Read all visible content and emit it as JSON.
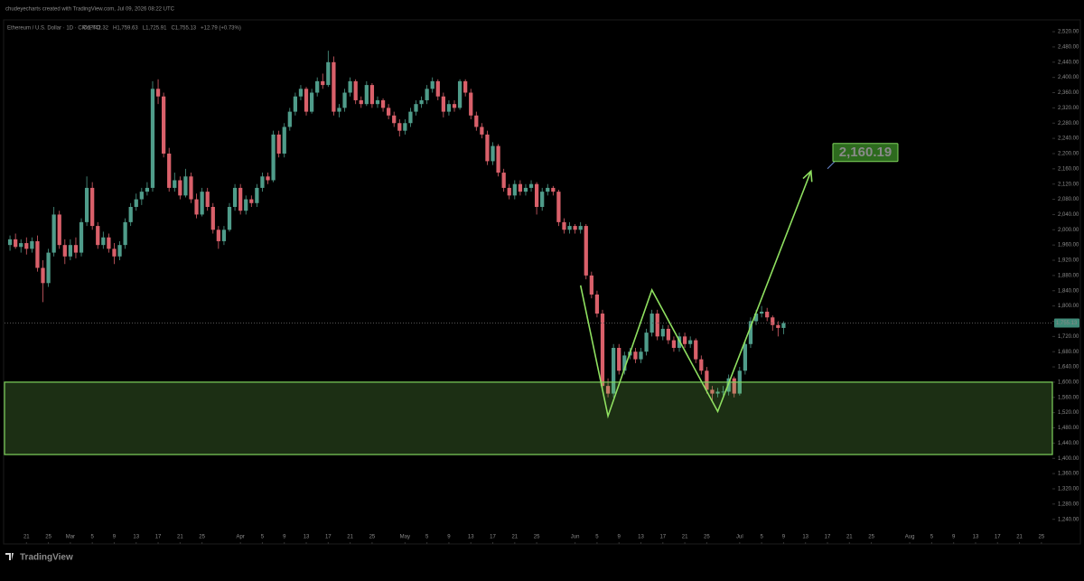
{
  "chart_data": {
    "type": "candlestick",
    "subtitle": "chudeyecharts created with TradingView.com, Jul 09, 2026 08:22 UTC",
    "title": "Ethereum / U.S. Dollar · 1D · CRYPTO",
    "legend_values": [
      "O1,742.32",
      "H1,759.63",
      "L1,725.91",
      "C1,755.13",
      "+12.79 (+0.73%)"
    ],
    "brand": "TradingView",
    "up_color": "#4f9c8a",
    "down_color": "#d9606a",
    "x": [
      "Feb 18",
      "Feb 19",
      "Feb 20",
      "Feb 21",
      "Feb 22",
      "Feb 23",
      "Feb 24",
      "Feb 25",
      "Feb 26",
      "Feb 27",
      "Feb 28",
      "Mar 1",
      "Mar 2",
      "Mar 3",
      "Mar 4",
      "Mar 5",
      "Mar 6",
      "Mar 7",
      "Mar 8",
      "Mar 9",
      "Mar 10",
      "Mar 11",
      "Mar 12",
      "Mar 13",
      "Mar 14",
      "Mar 15",
      "Mar 16",
      "Mar 17",
      "Mar 18",
      "Mar 19",
      "Mar 20",
      "Mar 21",
      "Mar 22",
      "Mar 23",
      "Mar 24",
      "Mar 25",
      "Mar 26",
      "Mar 27",
      "Mar 28",
      "Mar 29",
      "Mar 30",
      "Mar 31",
      "Apr 1",
      "Apr 2",
      "Apr 3",
      "Apr 4",
      "Apr 5",
      "Apr 6",
      "Apr 7",
      "Apr 8",
      "Apr 9",
      "Apr 10",
      "Apr 11",
      "Apr 12",
      "Apr 13",
      "Apr 14",
      "Apr 15",
      "Apr 16",
      "Apr 17",
      "Apr 18",
      "Apr 19",
      "Apr 20",
      "Apr 21",
      "Apr 22",
      "Apr 23",
      "Apr 24",
      "Apr 25",
      "Apr 26",
      "Apr 27",
      "Apr 28",
      "Apr 29",
      "Apr 30",
      "May 1",
      "May 2",
      "May 3",
      "May 4",
      "May 5",
      "May 6",
      "May 7",
      "May 8",
      "May 9",
      "May 10",
      "May 11",
      "May 12",
      "May 13",
      "May 14",
      "May 15",
      "May 16",
      "May 17",
      "May 18",
      "May 19",
      "May 20",
      "May 21",
      "May 22",
      "May 23",
      "May 24",
      "May 25",
      "May 26",
      "May 27",
      "May 28",
      "May 29",
      "May 30",
      "May 31",
      "Jun 1",
      "Jun 2",
      "Jun 3",
      "Jun 4",
      "Jun 5",
      "Jun 6",
      "Jun 7",
      "Jun 8",
      "Jun 9",
      "Jun 10",
      "Jun 11",
      "Jun 12",
      "Jun 13",
      "Jun 14",
      "Jun 15",
      "Jun 16",
      "Jun 17",
      "Jun 18",
      "Jun 19",
      "Jun 20",
      "Jun 21",
      "Jun 22",
      "Jun 23",
      "Jun 24",
      "Jun 25",
      "Jun 26",
      "Jun 27",
      "Jun 28",
      "Jun 29",
      "Jun 30",
      "Jul 1",
      "Jul 2",
      "Jul 3",
      "Jul 4",
      "Jul 5",
      "Jul 6",
      "Jul 7",
      "Jul 8",
      "Jul 9"
    ],
    "ohlc": [
      [
        1960,
        1985,
        1945,
        1975
      ],
      [
        1975,
        1990,
        1950,
        1955
      ],
      [
        1955,
        1975,
        1940,
        1965
      ],
      [
        1965,
        1980,
        1935,
        1950
      ],
      [
        1950,
        1980,
        1940,
        1970
      ],
      [
        1970,
        1985,
        1890,
        1900
      ],
      [
        1900,
        1920,
        1810,
        1860
      ],
      [
        1860,
        1950,
        1850,
        1940
      ],
      [
        1940,
        2060,
        1930,
        2040
      ],
      [
        2040,
        2050,
        1950,
        1960
      ],
      [
        1960,
        1975,
        1910,
        1930
      ],
      [
        1930,
        1975,
        1920,
        1960
      ],
      [
        1960,
        1980,
        1925,
        1940
      ],
      [
        1940,
        2030,
        1930,
        2020
      ],
      [
        2020,
        2140,
        2010,
        2110
      ],
      [
        2110,
        2125,
        2000,
        2010
      ],
      [
        2010,
        2020,
        1950,
        1960
      ],
      [
        1960,
        1995,
        1950,
        1980
      ],
      [
        1980,
        1990,
        1940,
        1950
      ],
      [
        1950,
        1965,
        1910,
        1930
      ],
      [
        1930,
        1970,
        1920,
        1960
      ],
      [
        1960,
        2030,
        1950,
        2020
      ],
      [
        2020,
        2070,
        2010,
        2060
      ],
      [
        2060,
        2095,
        2050,
        2080
      ],
      [
        2080,
        2110,
        2065,
        2100
      ],
      [
        2100,
        2125,
        2090,
        2110
      ],
      [
        2110,
        2390,
        2100,
        2370
      ],
      [
        2370,
        2395,
        2330,
        2350
      ],
      [
        2350,
        2360,
        2190,
        2200
      ],
      [
        2200,
        2215,
        2100,
        2110
      ],
      [
        2110,
        2150,
        2100,
        2130
      ],
      [
        2130,
        2140,
        2080,
        2090
      ],
      [
        2090,
        2160,
        2085,
        2140
      ],
      [
        2140,
        2150,
        2070,
        2080
      ],
      [
        2080,
        2095,
        2030,
        2040
      ],
      [
        2040,
        2110,
        2035,
        2100
      ],
      [
        2100,
        2110,
        2050,
        2060
      ],
      [
        2060,
        2070,
        1990,
        2000
      ],
      [
        2000,
        2010,
        1950,
        1970
      ],
      [
        1970,
        2010,
        1960,
        2000
      ],
      [
        2000,
        2070,
        1995,
        2060
      ],
      [
        2060,
        2120,
        2050,
        2110
      ],
      [
        2110,
        2120,
        2040,
        2050
      ],
      [
        2050,
        2090,
        2040,
        2080
      ],
      [
        2080,
        2090,
        2060,
        2070
      ],
      [
        2070,
        2120,
        2060,
        2110
      ],
      [
        2110,
        2150,
        2100,
        2140
      ],
      [
        2140,
        2150,
        2120,
        2130
      ],
      [
        2130,
        2260,
        2125,
        2250
      ],
      [
        2250,
        2260,
        2190,
        2200
      ],
      [
        2200,
        2280,
        2190,
        2270
      ],
      [
        2270,
        2320,
        2260,
        2310
      ],
      [
        2310,
        2360,
        2300,
        2350
      ],
      [
        2350,
        2380,
        2340,
        2370
      ],
      [
        2370,
        2375,
        2300,
        2310
      ],
      [
        2310,
        2370,
        2305,
        2360
      ],
      [
        2360,
        2400,
        2350,
        2390
      ],
      [
        2390,
        2410,
        2370,
        2380
      ],
      [
        2380,
        2470,
        2375,
        2440
      ],
      [
        2440,
        2455,
        2300,
        2310
      ],
      [
        2310,
        2330,
        2295,
        2320
      ],
      [
        2320,
        2370,
        2310,
        2360
      ],
      [
        2360,
        2400,
        2350,
        2390
      ],
      [
        2390,
        2395,
        2330,
        2340
      ],
      [
        2340,
        2350,
        2320,
        2330
      ],
      [
        2330,
        2390,
        2325,
        2380
      ],
      [
        2380,
        2385,
        2320,
        2330
      ],
      [
        2330,
        2350,
        2320,
        2340
      ],
      [
        2340,
        2345,
        2310,
        2320
      ],
      [
        2320,
        2330,
        2290,
        2300
      ],
      [
        2300,
        2310,
        2270,
        2280
      ],
      [
        2280,
        2290,
        2245,
        2260
      ],
      [
        2260,
        2290,
        2250,
        2280
      ],
      [
        2280,
        2320,
        2270,
        2310
      ],
      [
        2310,
        2340,
        2300,
        2330
      ],
      [
        2330,
        2350,
        2320,
        2340
      ],
      [
        2340,
        2380,
        2330,
        2370
      ],
      [
        2370,
        2400,
        2360,
        2390
      ],
      [
        2390,
        2395,
        2340,
        2350
      ],
      [
        2350,
        2360,
        2295,
        2310
      ],
      [
        2310,
        2340,
        2300,
        2330
      ],
      [
        2330,
        2340,
        2310,
        2320
      ],
      [
        2320,
        2395,
        2315,
        2390
      ],
      [
        2390,
        2395,
        2350,
        2360
      ],
      [
        2360,
        2370,
        2290,
        2300
      ],
      [
        2300,
        2310,
        2260,
        2270
      ],
      [
        2270,
        2280,
        2240,
        2250
      ],
      [
        2250,
        2260,
        2170,
        2180
      ],
      [
        2180,
        2230,
        2170,
        2220
      ],
      [
        2220,
        2225,
        2140,
        2150
      ],
      [
        2150,
        2160,
        2100,
        2110
      ],
      [
        2110,
        2120,
        2080,
        2090
      ],
      [
        2090,
        2130,
        2080,
        2120
      ],
      [
        2120,
        2130,
        2090,
        2100
      ],
      [
        2100,
        2120,
        2090,
        2110
      ],
      [
        2110,
        2130,
        2100,
        2120
      ],
      [
        2120,
        2125,
        2040,
        2060
      ],
      [
        2060,
        2110,
        2050,
        2100
      ],
      [
        2100,
        2120,
        2090,
        2110
      ],
      [
        2110,
        2115,
        2090,
        2100
      ],
      [
        2100,
        2105,
        2010,
        2020
      ],
      [
        2020,
        2030,
        1990,
        2000
      ],
      [
        2000,
        2020,
        1990,
        2010
      ],
      [
        2010,
        2015,
        1990,
        2000
      ],
      [
        2000,
        2020,
        1990,
        2010
      ],
      [
        2010,
        2015,
        1870,
        1880
      ],
      [
        1880,
        1890,
        1820,
        1830
      ],
      [
        1830,
        1840,
        1770,
        1780
      ],
      [
        1780,
        1790,
        1580,
        1590
      ],
      [
        1590,
        1610,
        1560,
        1570
      ],
      [
        1570,
        1700,
        1560,
        1690
      ],
      [
        1690,
        1700,
        1620,
        1630
      ],
      [
        1630,
        1680,
        1620,
        1670
      ],
      [
        1670,
        1690,
        1660,
        1680
      ],
      [
        1680,
        1690,
        1650,
        1660
      ],
      [
        1660,
        1690,
        1650,
        1680
      ],
      [
        1680,
        1740,
        1670,
        1730
      ],
      [
        1730,
        1790,
        1720,
        1780
      ],
      [
        1780,
        1790,
        1710,
        1720
      ],
      [
        1720,
        1750,
        1710,
        1740
      ],
      [
        1740,
        1750,
        1700,
        1710
      ],
      [
        1710,
        1720,
        1680,
        1690
      ],
      [
        1690,
        1730,
        1680,
        1720
      ],
      [
        1720,
        1730,
        1690,
        1700
      ],
      [
        1700,
        1720,
        1690,
        1710
      ],
      [
        1710,
        1715,
        1650,
        1660
      ],
      [
        1660,
        1670,
        1620,
        1630
      ],
      [
        1630,
        1640,
        1570,
        1580
      ],
      [
        1580,
        1590,
        1550,
        1570
      ],
      [
        1570,
        1585,
        1560,
        1575
      ],
      [
        1575,
        1590,
        1565,
        1575
      ],
      [
        1575,
        1620,
        1565,
        1610
      ],
      [
        1610,
        1615,
        1560,
        1570
      ],
      [
        1570,
        1640,
        1565,
        1630
      ],
      [
        1630,
        1710,
        1620,
        1700
      ],
      [
        1700,
        1770,
        1690,
        1760
      ],
      [
        1760,
        1790,
        1750,
        1780
      ],
      [
        1780,
        1800,
        1770,
        1785
      ],
      [
        1785,
        1795,
        1760,
        1770
      ],
      [
        1770,
        1775,
        1735,
        1750
      ],
      [
        1750,
        1760,
        1720,
        1742.34
      ],
      [
        1742.32,
        1759.63,
        1725.91,
        1755.13
      ]
    ],
    "xlim": [
      "Feb 17",
      "Aug 27"
    ],
    "xticks": [
      {
        "value": "Feb 21",
        "label": "21"
      },
      {
        "value": "Feb 25",
        "label": "25"
      },
      {
        "value": "Mar 1",
        "label": "Mar"
      },
      {
        "value": "Mar 5",
        "label": "5"
      },
      {
        "value": "Mar 9",
        "label": "9"
      },
      {
        "value": "Mar 13",
        "label": "13"
      },
      {
        "value": "Mar 17",
        "label": "17"
      },
      {
        "value": "Mar 21",
        "label": "21"
      },
      {
        "value": "Mar 25",
        "label": "25"
      },
      {
        "value": "Apr 1",
        "label": "Apr"
      },
      {
        "value": "Apr 5",
        "label": "5"
      },
      {
        "value": "Apr 9",
        "label": "9"
      },
      {
        "value": "Apr 13",
        "label": "13"
      },
      {
        "value": "Apr 17",
        "label": "17"
      },
      {
        "value": "Apr 21",
        "label": "21"
      },
      {
        "value": "Apr 25",
        "label": "25"
      },
      {
        "value": "May 1",
        "label": "May"
      },
      {
        "value": "May 5",
        "label": "5"
      },
      {
        "value": "May 9",
        "label": "9"
      },
      {
        "value": "May 13",
        "label": "13"
      },
      {
        "value": "May 17",
        "label": "17"
      },
      {
        "value": "May 21",
        "label": "21"
      },
      {
        "value": "May 25",
        "label": "25"
      },
      {
        "value": "Jun 1",
        "label": "Jun"
      },
      {
        "value": "Jun 5",
        "label": "5"
      },
      {
        "value": "Jun 9",
        "label": "9"
      },
      {
        "value": "Jun 13",
        "label": "13"
      },
      {
        "value": "Jun 17",
        "label": "17"
      },
      {
        "value": "Jun 21",
        "label": "21"
      },
      {
        "value": "Jun 25",
        "label": "25"
      },
      {
        "value": "Jul 1",
        "label": "Jul"
      },
      {
        "value": "Jul 5",
        "label": "5"
      },
      {
        "value": "Jul 9",
        "label": "9"
      },
      {
        "value": "Jul 13",
        "label": "13"
      },
      {
        "value": "Jul 17",
        "label": "17"
      },
      {
        "value": "Jul 21",
        "label": "21"
      },
      {
        "value": "Jul 25",
        "label": "25"
      },
      {
        "value": "Aug 1",
        "label": "Aug"
      },
      {
        "value": "Aug 5",
        "label": "5"
      },
      {
        "value": "Aug 9",
        "label": "9"
      },
      {
        "value": "Aug 13",
        "label": "13"
      },
      {
        "value": "Aug 17",
        "label": "17"
      },
      {
        "value": "Aug 21",
        "label": "21"
      },
      {
        "value": "Aug 25",
        "label": "25"
      }
    ],
    "ylim": [
      1180,
      2551
    ],
    "yticks": [
      {
        "value": 1240,
        "label": "1,240.00"
      },
      {
        "value": 1280,
        "label": "1,280.00"
      },
      {
        "value": 1320,
        "label": "1,320.00"
      },
      {
        "value": 1360,
        "label": "1,360.00"
      },
      {
        "value": 1400,
        "label": "1,400.00"
      },
      {
        "value": 1440,
        "label": "1,440.00"
      },
      {
        "value": 1480,
        "label": "1,480.00"
      },
      {
        "value": 1520,
        "label": "1,520.00"
      },
      {
        "value": 1560,
        "label": "1,560.00"
      },
      {
        "value": 1600,
        "label": "1,600.00"
      },
      {
        "value": 1640,
        "label": "1,640.00"
      },
      {
        "value": 1680,
        "label": "1,680.00"
      },
      {
        "value": 1720,
        "label": "1,720.00"
      },
      {
        "value": 1760,
        "label": "1,760.00"
      },
      {
        "value": 1800,
        "label": "1,800.00"
      },
      {
        "value": 1840,
        "label": "1,840.00"
      },
      {
        "value": 1880,
        "label": "1,880.00"
      },
      {
        "value": 1920,
        "label": "1,920.00"
      },
      {
        "value": 1960,
        "label": "1,960.00"
      },
      {
        "value": 2000,
        "label": "2,000.00"
      },
      {
        "value": 2040,
        "label": "2,040.00"
      },
      {
        "value": 2080,
        "label": "2,080.00"
      },
      {
        "value": 2120,
        "label": "2,120.00"
      },
      {
        "value": 2160,
        "label": "2,160.00"
      },
      {
        "value": 2200,
        "label": "2,200.00"
      },
      {
        "value": 2240,
        "label": "2,240.00"
      },
      {
        "value": 2280,
        "label": "2,280.00"
      },
      {
        "value": 2320,
        "label": "2,320.00"
      },
      {
        "value": 2360,
        "label": "2,360.00"
      },
      {
        "value": 2400,
        "label": "2,400.00"
      },
      {
        "value": 2440,
        "label": "2,440.00"
      },
      {
        "value": 2480,
        "label": "2,480.00"
      },
      {
        "value": 2520,
        "label": "2,520.00"
      }
    ],
    "last_price": {
      "value": 1755.13,
      "label": "1,755.13"
    },
    "zone": {
      "top": 1600,
      "bottom": 1410,
      "color": "#7fd45c"
    },
    "pattern": {
      "x": [
        "Jun 2",
        "Jun 7",
        "Jun 15",
        "Jun 27",
        "Jul 14"
      ],
      "values": [
        1854,
        1511,
        1842,
        1523,
        2154
      ],
      "color": "#8fe060"
    },
    "target": {
      "x": "Jul 17",
      "value": 2160.19,
      "label": "2,160.19"
    }
  }
}
